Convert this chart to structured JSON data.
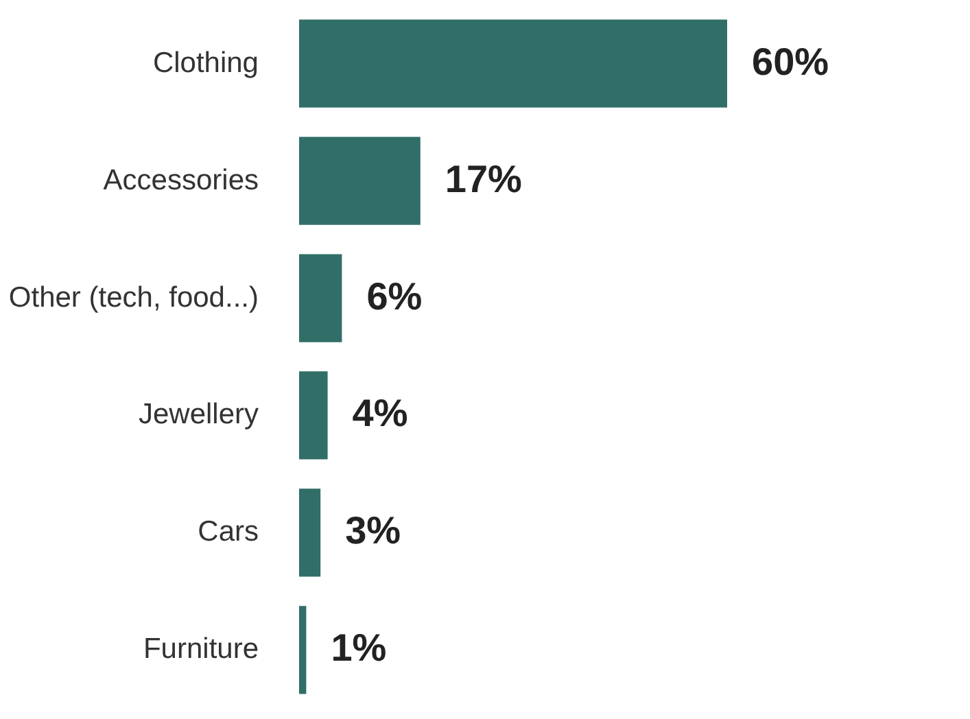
{
  "chart_data": {
    "type": "bar",
    "orientation": "horizontal",
    "categories": [
      "Clothing",
      "Accessories",
      "Other (tech, food...)",
      "Jewellery",
      "Cars",
      "Furniture"
    ],
    "values": [
      60,
      17,
      6,
      4,
      3,
      1
    ],
    "color": "#316e68",
    "value_labels": [
      "60%",
      "17%",
      "6%",
      "4%",
      "3%",
      "1%"
    ]
  }
}
